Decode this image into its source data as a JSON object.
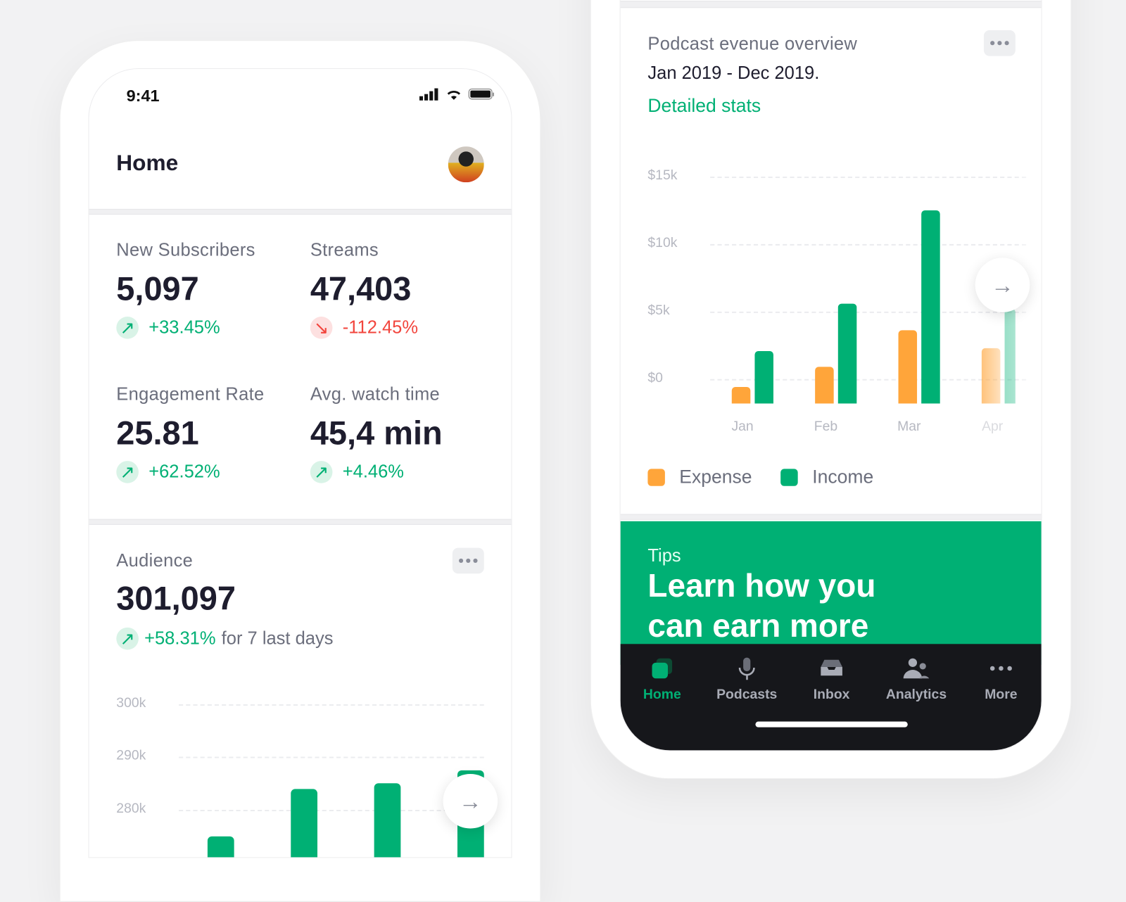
{
  "colors": {
    "accent": "#00b074",
    "expense": "#ffa53a",
    "negative": "#f2453d",
    "tabbar": "#16171b"
  },
  "left_phone": {
    "status": {
      "time": "9:41"
    },
    "header": {
      "title": "Home"
    },
    "stats": [
      {
        "label": "New Subscribers",
        "value": "5,097",
        "change": "+33.45%",
        "trend": "up"
      },
      {
        "label": "Streams",
        "value": "47,403",
        "change": "-112.45%",
        "trend": "down"
      },
      {
        "label": "Engagement Rate",
        "value": "25.81",
        "change": "+62.52%",
        "trend": "up"
      },
      {
        "label": "Avg. watch time",
        "value": "45,4 min",
        "change": "+4.46%",
        "trend": "up"
      }
    ],
    "audience": {
      "title": "Audience",
      "value": "301,097",
      "change": "+58.31%",
      "change_suffix": "for 7 last days",
      "chart_data": {
        "type": "bar",
        "y_ticks": [
          "300k",
          "290k",
          "280k"
        ],
        "ylim": [
          270000,
          300000
        ],
        "values": [
          275000,
          284000,
          285000,
          287500
        ],
        "grid": true
      }
    }
  },
  "right_phone": {
    "card": {
      "title": "Podcast evenue overview",
      "period": "Jan 2019 - Dec 2019.",
      "link": "Detailed stats"
    },
    "chart_data": {
      "type": "bar",
      "y_ticks": [
        "$15k",
        "$10k",
        "$5k",
        "$0"
      ],
      "categories": [
        "Jan",
        "Feb",
        "Mar",
        "Apr"
      ],
      "series": [
        {
          "name": "Expense",
          "values": [
            1200,
            2700,
            5400,
            4100
          ]
        },
        {
          "name": "Income",
          "values": [
            3900,
            7400,
            14300,
            7000
          ]
        }
      ],
      "ylim": [
        0,
        15000
      ],
      "grid": true,
      "legend": "bottom-left"
    },
    "tips": {
      "label": "Tips",
      "headline": "Learn how you can earn more then"
    },
    "tabbar": [
      {
        "label": "Home",
        "icon": "home-icon",
        "active": true
      },
      {
        "label": "Podcasts",
        "icon": "microphone-icon"
      },
      {
        "label": "Inbox",
        "icon": "inbox-icon"
      },
      {
        "label": "Analytics",
        "icon": "users-icon"
      },
      {
        "label": "More",
        "icon": "more-icon"
      }
    ]
  }
}
